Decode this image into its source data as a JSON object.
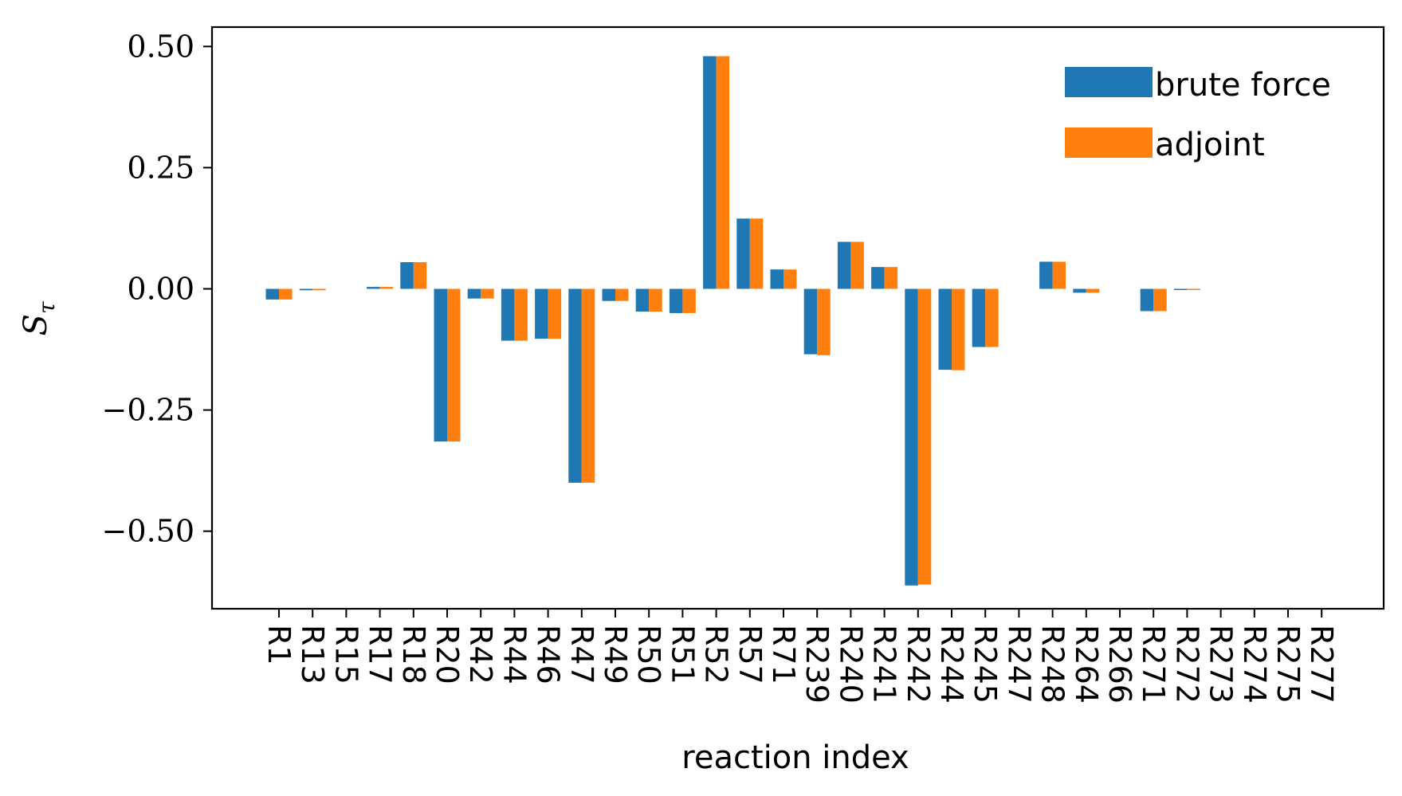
{
  "chart_data": {
    "type": "bar",
    "xlabel": "reaction index",
    "ylabel": "S",
    "ylabel_sub": "τ",
    "ylim": [
      -0.66,
      0.54
    ],
    "yticks": [
      0.5,
      0.25,
      0.0,
      -0.25,
      -0.5
    ],
    "ytick_labels": [
      "0.50",
      "0.25",
      "0.00",
      "−0.25",
      "−0.50"
    ],
    "grid": false,
    "legend_position": "top-right",
    "categories": [
      "R1",
      "R13",
      "R15",
      "R17",
      "R18",
      "R20",
      "R42",
      "R44",
      "R46",
      "R47",
      "R49",
      "R50",
      "R51",
      "R52",
      "R57",
      "R71",
      "R239",
      "R240",
      "R241",
      "R242",
      "R244",
      "R245",
      "R247",
      "R248",
      "R264",
      "R266",
      "R271",
      "R272",
      "R273",
      "R274",
      "R275",
      "R277"
    ],
    "series": [
      {
        "name": "brute force",
        "color": "#1f77b4",
        "values": [
          -0.022,
          -0.003,
          0.0,
          0.004,
          0.055,
          -0.315,
          -0.02,
          -0.107,
          -0.103,
          -0.4,
          -0.025,
          -0.047,
          -0.05,
          0.48,
          0.145,
          0.04,
          -0.135,
          0.097,
          0.045,
          -0.612,
          -0.167,
          -0.12,
          0.0,
          0.056,
          -0.008,
          0.0,
          -0.046,
          -0.002,
          0.0,
          0.0,
          0.0,
          0.0
        ]
      },
      {
        "name": "adjoint",
        "color": "#ff7f0e",
        "values": [
          -0.022,
          -0.003,
          0.0,
          0.004,
          0.055,
          -0.315,
          -0.02,
          -0.107,
          -0.103,
          -0.4,
          -0.025,
          -0.047,
          -0.05,
          0.48,
          0.145,
          0.04,
          -0.137,
          0.097,
          0.045,
          -0.61,
          -0.168,
          -0.12,
          0.0,
          0.056,
          -0.008,
          0.0,
          -0.046,
          -0.002,
          0.0,
          0.0,
          0.0,
          0.0
        ]
      }
    ]
  }
}
